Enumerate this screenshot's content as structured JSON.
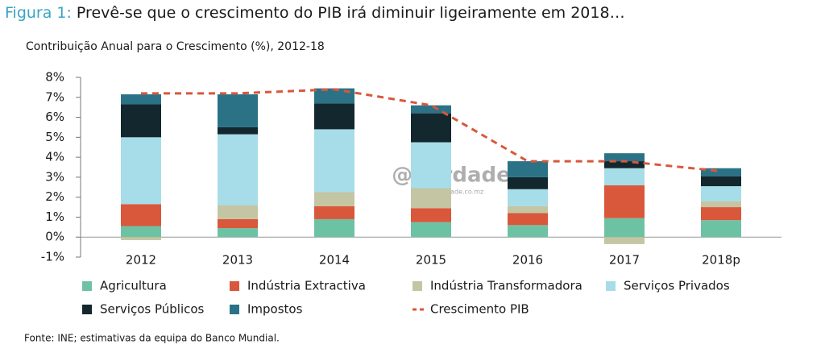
{
  "chart_data": {
    "type": "stacked_bar_line",
    "title_label": "Figura 1:",
    "title": "Prevê-se que o crescimento do PIB irá diminuir ligeiramente em 2018…",
    "subtitle": "Contribuição Anual para o Crescimento (%), 2012-18",
    "source": "Fonte: INE; estimativas da equipa do Banco Mundial.",
    "watermark": "@Verdade",
    "watermark_url": "www.verdade.co.mz",
    "categories": [
      "2012",
      "2013",
      "2014",
      "2015",
      "2016",
      "2017",
      "2018p"
    ],
    "series": [
      {
        "name": "Agricultura",
        "color": "#6ec2a4",
        "values": [
          0.55,
          0.45,
          0.9,
          0.75,
          0.6,
          0.95,
          0.85
        ]
      },
      {
        "name": "Indústria Extractiva",
        "color": "#d9573b",
        "values": [
          1.1,
          0.45,
          0.65,
          0.7,
          0.6,
          1.65,
          0.65
        ]
      },
      {
        "name": "Indústria Transformadora",
        "color": "#c4c5a2",
        "values": [
          -0.15,
          0.7,
          0.7,
          1.0,
          0.35,
          -0.35,
          0.3
        ]
      },
      {
        "name": "Serviços Privados",
        "color": "#a6dde8",
        "values": [
          3.35,
          3.55,
          3.15,
          2.3,
          0.85,
          0.85,
          0.75
        ]
      },
      {
        "name": "Serviços Públicos",
        "color": "#13282e",
        "values": [
          1.65,
          0.35,
          1.3,
          1.45,
          0.6,
          0.35,
          0.5
        ]
      },
      {
        "name": "Impostos",
        "color": "#2b7287",
        "values": [
          0.5,
          1.65,
          0.75,
          0.4,
          0.8,
          0.4,
          0.4
        ]
      },
      {
        "name": "Crescimento PIB",
        "color": "#d9573b",
        "type": "line",
        "values": [
          7.2,
          7.2,
          7.4,
          6.6,
          3.8,
          3.8,
          3.3
        ]
      }
    ],
    "ylim": [
      -1,
      8
    ],
    "yticks": [
      {
        "value": -1,
        "label": "-1%"
      },
      {
        "value": 0,
        "label": "0%"
      },
      {
        "value": 1,
        "label": "1%"
      },
      {
        "value": 2,
        "label": "2%"
      },
      {
        "value": 3,
        "label": "3%"
      },
      {
        "value": 4,
        "label": "4%"
      },
      {
        "value": 5,
        "label": "5%"
      },
      {
        "value": 6,
        "label": "6%"
      },
      {
        "value": 7,
        "label": "7%"
      },
      {
        "value": 8,
        "label": "8%"
      }
    ],
    "grid": false,
    "legend": "bottom"
  }
}
